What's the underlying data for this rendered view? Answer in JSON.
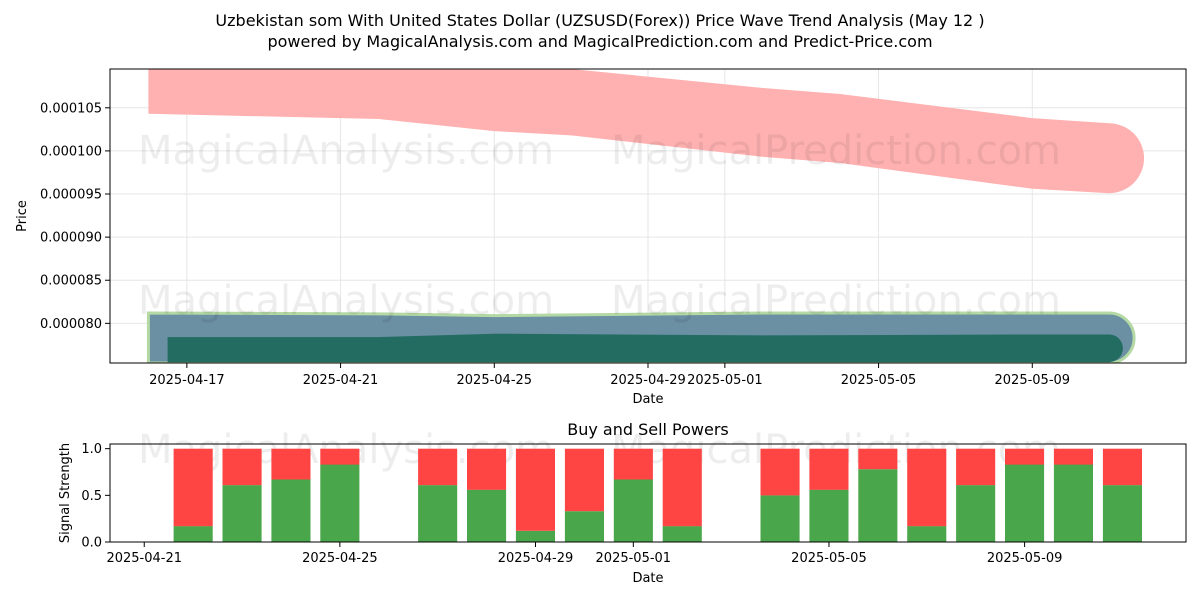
{
  "header": {
    "title_line1": "Uzbekistan som With United States Dollar (UZSUSD(Forex)) Price Wave Trend Analysis (May 12 )",
    "title_line2": "powered by MagicalAnalysis.com and MagicalPrediction.com and Predict-Price.com"
  },
  "watermarks": [
    "MagicalAnalysis.com",
    "MagicalPrediction.com"
  ],
  "colors": {
    "upper_band": "#ffb1b1",
    "blue_band": "#6b8fa3",
    "green_band_edge": "#b4d9a4",
    "dark_band": "#226c62",
    "buy": "#4aa64a",
    "sell": "#ff4444"
  },
  "chart_data": [
    {
      "type": "area",
      "title": "",
      "xlabel": "Date",
      "ylabel": "Price",
      "xlim": [
        "2025-04-15",
        "2025-05-13"
      ],
      "ylim": [
        7.54e-05,
        0.0001095
      ],
      "grid": true,
      "x_ticks": [
        "2025-04-17",
        "2025-04-21",
        "2025-04-25",
        "2025-04-29",
        "2025-05-01",
        "2025-05-05",
        "2025-05-09"
      ],
      "y_ticks": [
        "0.000080",
        "0.000085",
        "0.000090",
        "0.000095",
        "0.000100",
        "0.000105"
      ],
      "bands": [
        {
          "key": "upper",
          "x": [
            "2025-04-16",
            "2025-04-22",
            "2025-04-25",
            "2025-04-27",
            "2025-05-02",
            "2025-05-04",
            "2025-05-09",
            "2025-05-11"
          ],
          "upper": [
            0.0001095,
            0.0001095,
            0.0001095,
            0.0001095,
            0.0001073,
            0.0001066,
            0.0001038,
            0.0001032
          ],
          "lower": [
            0.0001043,
            0.0001037,
            0.0001023,
            0.0001018,
            9.93e-05,
            9.86e-05,
            9.56e-05,
            9.51e-05
          ]
        },
        {
          "key": "blue",
          "x": [
            "2025-04-16",
            "2025-04-22",
            "2025-04-25",
            "2025-05-02",
            "2025-05-09",
            "2025-05-11"
          ],
          "upper": [
            8.12e-05,
            8.11e-05,
            8.09e-05,
            8.12e-05,
            8.12e-05,
            8.12e-05
          ],
          "lower": [
            7.54e-05,
            7.54e-05,
            7.54e-05,
            7.54e-05,
            7.54e-05,
            7.54e-05
          ]
        },
        {
          "key": "dark",
          "x": [
            "2025-04-16.5",
            "2025-04-22",
            "2025-04-25",
            "2025-05-02",
            "2025-05-09",
            "2025-05-11"
          ],
          "upper": [
            7.84e-05,
            7.84e-05,
            7.88e-05,
            7.86e-05,
            7.87e-05,
            7.87e-05
          ],
          "lower": [
            7.55e-05,
            7.55e-05,
            7.55e-05,
            7.55e-05,
            7.55e-05,
            7.55e-05
          ]
        }
      ]
    },
    {
      "type": "bar",
      "title": "Buy and Sell Powers",
      "xlabel": "Date",
      "ylabel": "Signal Strength",
      "xlim": [
        "2025-04-20.3",
        "2025-05-12.3"
      ],
      "ylim": [
        0,
        1.05
      ],
      "x_ticks": [
        "2025-04-21",
        "2025-04-25",
        "2025-04-29",
        "2025-05-01",
        "2025-05-05",
        "2025-05-09"
      ],
      "y_ticks": [
        "0.0",
        "0.5",
        "1.0"
      ],
      "series": [
        {
          "name": "Buy",
          "color": "#4aa64a"
        },
        {
          "name": "Sell",
          "color": "#ff4444"
        }
      ],
      "x": [
        "2025-04-22",
        "2025-04-23",
        "2025-04-24",
        "2025-04-25",
        "2025-04-27",
        "2025-04-28",
        "2025-04-29",
        "2025-04-30",
        "2025-05-01",
        "2025-05-02",
        "2025-05-04",
        "2025-05-05",
        "2025-05-06",
        "2025-05-07",
        "2025-05-08",
        "2025-05-09",
        "2025-05-10",
        "2025-05-11"
      ],
      "buy": [
        0.17,
        0.61,
        0.67,
        0.83,
        0.61,
        0.56,
        0.12,
        0.33,
        0.67,
        0.17,
        0.5,
        0.56,
        0.78,
        0.17,
        0.61,
        0.83,
        0.83,
        0.61
      ],
      "sell": [
        0.83,
        0.39,
        0.33,
        0.17,
        0.39,
        0.44,
        0.88,
        0.67,
        0.33,
        0.83,
        0.5,
        0.44,
        0.22,
        0.83,
        0.39,
        0.17,
        0.17,
        0.39
      ]
    }
  ]
}
